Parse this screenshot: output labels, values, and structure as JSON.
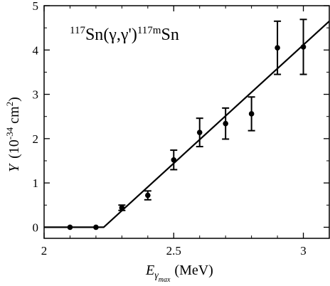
{
  "chart_data": {
    "type": "scatter",
    "annotation": {
      "mass_number": "117",
      "element": "Sn",
      "reaction": "(γ,γ')",
      "product_mass": "117m",
      "product_element": "Sn"
    },
    "xlabel": {
      "symbol": "E",
      "subscript": "γ",
      "subsubscript": "max",
      "unit": "(MeV)"
    },
    "ylabel": {
      "symbol": "Y",
      "unit_open": "(10",
      "exponent": "-34",
      "unit_mid": " cm",
      "unit_exp": "2",
      "unit_close": ")"
    },
    "xlim": [
      2.0,
      3.1
    ],
    "ylim": [
      -0.25,
      5.0
    ],
    "x_ticks": [
      2.0,
      2.5,
      3.0
    ],
    "x_tick_labels": [
      "2",
      "2.5",
      "3"
    ],
    "y_ticks": [
      0,
      1,
      2,
      3,
      4,
      5
    ],
    "y_tick_labels": [
      "0",
      "1",
      "2",
      "3",
      "4",
      "5"
    ],
    "points": [
      {
        "x": 2.1,
        "y": 0.0,
        "err": 0.0
      },
      {
        "x": 2.2,
        "y": 0.0,
        "err": 0.0
      },
      {
        "x": 2.3,
        "y": 0.44,
        "err": 0.06
      },
      {
        "x": 2.4,
        "y": 0.72,
        "err": 0.1
      },
      {
        "x": 2.5,
        "y": 1.52,
        "err": 0.22
      },
      {
        "x": 2.6,
        "y": 2.14,
        "err": 0.32
      },
      {
        "x": 2.7,
        "y": 2.34,
        "err": 0.35
      },
      {
        "x": 2.8,
        "y": 2.56,
        "err": 0.38
      },
      {
        "x": 2.9,
        "y": 4.05,
        "err": 0.6
      },
      {
        "x": 3.0,
        "y": 4.07,
        "err": 0.62
      }
    ],
    "fit_line": [
      {
        "x": 2.0,
        "y": 0.0
      },
      {
        "x": 2.23,
        "y": 0.0
      },
      {
        "x": 3.1,
        "y": 4.65
      }
    ],
    "grid": false,
    "legend": "none"
  }
}
